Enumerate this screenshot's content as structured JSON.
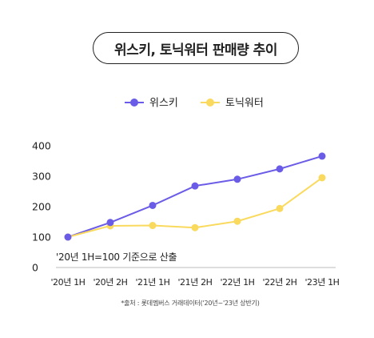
{
  "title": "위스키, 토닉워터 판매량 추이",
  "note": "'20년 1H=100 기준으로 산출",
  "source": "*출처 : 롯데멤버스 거래데이터('20년~'23년 상반기)",
  "colors": {
    "series1": "#6b5ce7",
    "series2": "#fada5e",
    "axis": "#bbbbbb"
  },
  "chart_data": {
    "type": "line",
    "title": "위스키, 토닉워터 판매량 추이",
    "x": [
      "'20년 1H",
      "'20년 2H",
      "'21년 1H",
      "'21년 2H",
      "'22년 1H",
      "'22년 2H",
      "'23년 1H"
    ],
    "series": [
      {
        "name": "위스키",
        "values": [
          100,
          148,
          204,
          268,
          290,
          324,
          366
        ]
      },
      {
        "name": "토닉워터",
        "values": [
          100,
          137,
          138,
          131,
          152,
          194,
          295
        ]
      }
    ],
    "ylim": [
      0,
      400
    ],
    "yticks": [
      0,
      100,
      200,
      300,
      400
    ],
    "grid": false,
    "legend": "top-center"
  }
}
